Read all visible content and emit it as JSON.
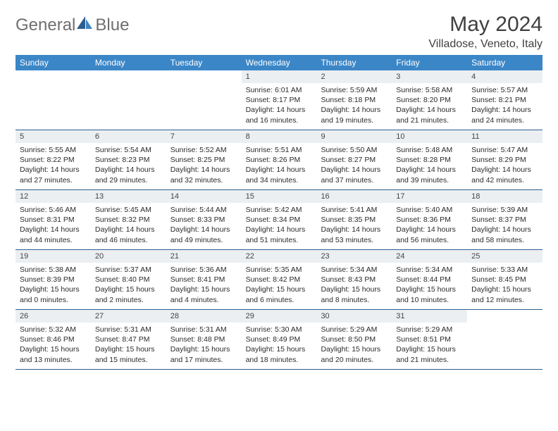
{
  "brand": {
    "part1": "General",
    "part2": "Blue"
  },
  "title": "May 2024",
  "location": "Villadose, Veneto, Italy",
  "colors": {
    "header_bg": "#3b86c7",
    "header_text": "#ffffff",
    "daynum_bg": "#eceff1",
    "border": "#2d5f8f",
    "logo_gray": "#6f6f6f",
    "logo_blue": "#3b7fbf",
    "text": "#2b2b2b"
  },
  "day_headers": [
    "Sunday",
    "Monday",
    "Tuesday",
    "Wednesday",
    "Thursday",
    "Friday",
    "Saturday"
  ],
  "weeks": [
    [
      {
        "n": "",
        "sr": "",
        "ss": "",
        "dl": ""
      },
      {
        "n": "",
        "sr": "",
        "ss": "",
        "dl": ""
      },
      {
        "n": "",
        "sr": "",
        "ss": "",
        "dl": ""
      },
      {
        "n": "1",
        "sr": "Sunrise: 6:01 AM",
        "ss": "Sunset: 8:17 PM",
        "dl": "Daylight: 14 hours and 16 minutes."
      },
      {
        "n": "2",
        "sr": "Sunrise: 5:59 AM",
        "ss": "Sunset: 8:18 PM",
        "dl": "Daylight: 14 hours and 19 minutes."
      },
      {
        "n": "3",
        "sr": "Sunrise: 5:58 AM",
        "ss": "Sunset: 8:20 PM",
        "dl": "Daylight: 14 hours and 21 minutes."
      },
      {
        "n": "4",
        "sr": "Sunrise: 5:57 AM",
        "ss": "Sunset: 8:21 PM",
        "dl": "Daylight: 14 hours and 24 minutes."
      }
    ],
    [
      {
        "n": "5",
        "sr": "Sunrise: 5:55 AM",
        "ss": "Sunset: 8:22 PM",
        "dl": "Daylight: 14 hours and 27 minutes."
      },
      {
        "n": "6",
        "sr": "Sunrise: 5:54 AM",
        "ss": "Sunset: 8:23 PM",
        "dl": "Daylight: 14 hours and 29 minutes."
      },
      {
        "n": "7",
        "sr": "Sunrise: 5:52 AM",
        "ss": "Sunset: 8:25 PM",
        "dl": "Daylight: 14 hours and 32 minutes."
      },
      {
        "n": "8",
        "sr": "Sunrise: 5:51 AM",
        "ss": "Sunset: 8:26 PM",
        "dl": "Daylight: 14 hours and 34 minutes."
      },
      {
        "n": "9",
        "sr": "Sunrise: 5:50 AM",
        "ss": "Sunset: 8:27 PM",
        "dl": "Daylight: 14 hours and 37 minutes."
      },
      {
        "n": "10",
        "sr": "Sunrise: 5:48 AM",
        "ss": "Sunset: 8:28 PM",
        "dl": "Daylight: 14 hours and 39 minutes."
      },
      {
        "n": "11",
        "sr": "Sunrise: 5:47 AM",
        "ss": "Sunset: 8:29 PM",
        "dl": "Daylight: 14 hours and 42 minutes."
      }
    ],
    [
      {
        "n": "12",
        "sr": "Sunrise: 5:46 AM",
        "ss": "Sunset: 8:31 PM",
        "dl": "Daylight: 14 hours and 44 minutes."
      },
      {
        "n": "13",
        "sr": "Sunrise: 5:45 AM",
        "ss": "Sunset: 8:32 PM",
        "dl": "Daylight: 14 hours and 46 minutes."
      },
      {
        "n": "14",
        "sr": "Sunrise: 5:44 AM",
        "ss": "Sunset: 8:33 PM",
        "dl": "Daylight: 14 hours and 49 minutes."
      },
      {
        "n": "15",
        "sr": "Sunrise: 5:42 AM",
        "ss": "Sunset: 8:34 PM",
        "dl": "Daylight: 14 hours and 51 minutes."
      },
      {
        "n": "16",
        "sr": "Sunrise: 5:41 AM",
        "ss": "Sunset: 8:35 PM",
        "dl": "Daylight: 14 hours and 53 minutes."
      },
      {
        "n": "17",
        "sr": "Sunrise: 5:40 AM",
        "ss": "Sunset: 8:36 PM",
        "dl": "Daylight: 14 hours and 56 minutes."
      },
      {
        "n": "18",
        "sr": "Sunrise: 5:39 AM",
        "ss": "Sunset: 8:37 PM",
        "dl": "Daylight: 14 hours and 58 minutes."
      }
    ],
    [
      {
        "n": "19",
        "sr": "Sunrise: 5:38 AM",
        "ss": "Sunset: 8:39 PM",
        "dl": "Daylight: 15 hours and 0 minutes."
      },
      {
        "n": "20",
        "sr": "Sunrise: 5:37 AM",
        "ss": "Sunset: 8:40 PM",
        "dl": "Daylight: 15 hours and 2 minutes."
      },
      {
        "n": "21",
        "sr": "Sunrise: 5:36 AM",
        "ss": "Sunset: 8:41 PM",
        "dl": "Daylight: 15 hours and 4 minutes."
      },
      {
        "n": "22",
        "sr": "Sunrise: 5:35 AM",
        "ss": "Sunset: 8:42 PM",
        "dl": "Daylight: 15 hours and 6 minutes."
      },
      {
        "n": "23",
        "sr": "Sunrise: 5:34 AM",
        "ss": "Sunset: 8:43 PM",
        "dl": "Daylight: 15 hours and 8 minutes."
      },
      {
        "n": "24",
        "sr": "Sunrise: 5:34 AM",
        "ss": "Sunset: 8:44 PM",
        "dl": "Daylight: 15 hours and 10 minutes."
      },
      {
        "n": "25",
        "sr": "Sunrise: 5:33 AM",
        "ss": "Sunset: 8:45 PM",
        "dl": "Daylight: 15 hours and 12 minutes."
      }
    ],
    [
      {
        "n": "26",
        "sr": "Sunrise: 5:32 AM",
        "ss": "Sunset: 8:46 PM",
        "dl": "Daylight: 15 hours and 13 minutes."
      },
      {
        "n": "27",
        "sr": "Sunrise: 5:31 AM",
        "ss": "Sunset: 8:47 PM",
        "dl": "Daylight: 15 hours and 15 minutes."
      },
      {
        "n": "28",
        "sr": "Sunrise: 5:31 AM",
        "ss": "Sunset: 8:48 PM",
        "dl": "Daylight: 15 hours and 17 minutes."
      },
      {
        "n": "29",
        "sr": "Sunrise: 5:30 AM",
        "ss": "Sunset: 8:49 PM",
        "dl": "Daylight: 15 hours and 18 minutes."
      },
      {
        "n": "30",
        "sr": "Sunrise: 5:29 AM",
        "ss": "Sunset: 8:50 PM",
        "dl": "Daylight: 15 hours and 20 minutes."
      },
      {
        "n": "31",
        "sr": "Sunrise: 5:29 AM",
        "ss": "Sunset: 8:51 PM",
        "dl": "Daylight: 15 hours and 21 minutes."
      },
      {
        "n": "",
        "sr": "",
        "ss": "",
        "dl": ""
      }
    ]
  ]
}
